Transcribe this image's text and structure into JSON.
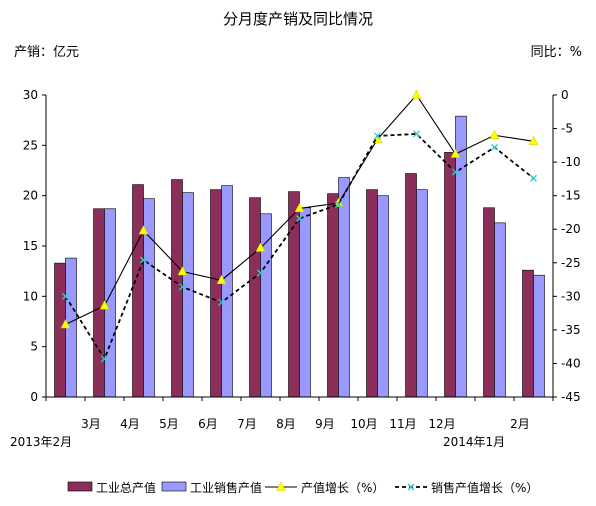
{
  "chart_data": {
    "type": "bar+line",
    "title": "分月度产销及同比情况",
    "left_axis_label": "产销：亿元",
    "right_axis_label": "同比：%",
    "categories": [
      "2013-02",
      "2013-03",
      "2013-04",
      "2013-05",
      "2013-06",
      "2013-07",
      "2013-08",
      "2013-09",
      "2013-10",
      "2013-11",
      "2013-12",
      "2014-01",
      "2014-02"
    ],
    "x_tick_labels": [
      "",
      "3月",
      "4月",
      "5月",
      "6月",
      "7月",
      "8月",
      "9月",
      "10月",
      "11月",
      "12月",
      "",
      "2月"
    ],
    "x_sub_labels": {
      "start": "2013年2月",
      "jan": "2014年1月"
    },
    "left_axis": {
      "min": 0,
      "max": 30,
      "step": 5,
      "ticks": [
        "0",
        "5",
        "10",
        "15",
        "20",
        "25",
        "30"
      ]
    },
    "right_axis": {
      "min": -45,
      "max": 0,
      "step": 5,
      "ticks": [
        "-45",
        "-40",
        "-35",
        "-30",
        "-25",
        "-20",
        "-15",
        "-10",
        "-5",
        "0"
      ]
    },
    "grid": false,
    "legend_position": "bottom",
    "series": [
      {
        "name": "工业总产值",
        "kind": "bar",
        "axis": "left",
        "color": "#8b2f5a",
        "values": [
          13.3,
          18.7,
          21.1,
          21.6,
          20.6,
          19.8,
          20.4,
          20.2,
          20.6,
          22.2,
          24.3,
          18.8,
          12.6
        ]
      },
      {
        "name": "工业销售产值",
        "kind": "bar",
        "axis": "left",
        "color": "#9999ff",
        "values": [
          13.8,
          18.7,
          19.7,
          20.3,
          21.0,
          18.2,
          18.8,
          21.8,
          20.0,
          20.6,
          27.9,
          17.3,
          12.1
        ]
      },
      {
        "name": "产值增长（%）",
        "kind": "line",
        "axis": "right",
        "color": "#000000",
        "marker_color": "#ffff00",
        "dash": "solid",
        "values": [
          -34.2,
          -31.4,
          -20.2,
          -26.3,
          -27.6,
          -22.8,
          -16.9,
          -16.1,
          -6.6,
          0.0,
          -8.8,
          -6.0,
          -6.9
        ]
      },
      {
        "name": "销售产值增长（%）",
        "kind": "line",
        "axis": "right",
        "color": "#000000",
        "marker_color": "#33cccc",
        "dash": "dashed",
        "values": [
          -30.0,
          -39.3,
          -24.6,
          -28.6,
          -30.9,
          -26.5,
          -18.4,
          -16.3,
          -6.1,
          -5.8,
          -11.5,
          -7.8,
          -12.4
        ]
      }
    ]
  }
}
